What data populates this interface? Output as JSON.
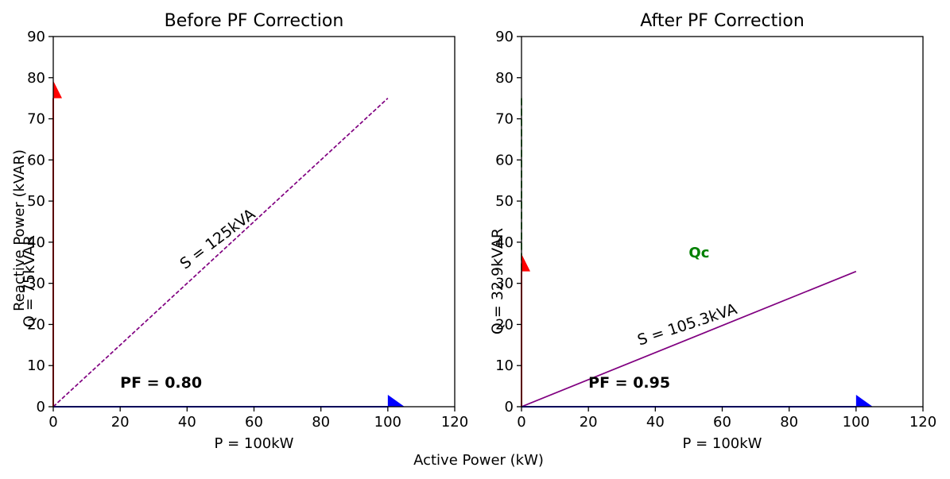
{
  "figure": {
    "supxlabel": "Active Power (kW)",
    "supylabel": "Reactive Power (kVAR)"
  },
  "colors": {
    "active": "#0000ff",
    "reactive": "#ff0000",
    "apparent": "#800080",
    "compensation": "#008000"
  },
  "chart_data": [
    {
      "type": "line",
      "title": "Before PF Correction",
      "xlabel": "P = 100kW",
      "ylabel": "Q = 75kVAR",
      "xlim": [
        0,
        120
      ],
      "ylim": [
        0,
        90
      ],
      "xticks": [
        0,
        20,
        40,
        60,
        80,
        100,
        120
      ],
      "yticks": [
        0,
        10,
        20,
        30,
        40,
        50,
        60,
        70,
        80,
        90
      ],
      "grid": false,
      "arrows": [
        {
          "name": "P",
          "from": [
            0,
            0
          ],
          "to": [
            100,
            0
          ],
          "color": "#0000ff"
        },
        {
          "name": "Q",
          "from": [
            0,
            0
          ],
          "to": [
            0,
            75
          ],
          "color": "#ff0000"
        }
      ],
      "series": [
        {
          "points": [
            [
              0,
              0
            ],
            [
              100,
              75
            ]
          ],
          "color": "#800080",
          "style": "dashed"
        }
      ],
      "annotations": [
        {
          "text": "S = 125kVA",
          "x": 50,
          "y": 37.5,
          "rotation_deg": 36.9
        },
        {
          "text": "PF = 0.80",
          "x": 20,
          "y": 5,
          "bold": true
        }
      ]
    },
    {
      "type": "line",
      "title": "After PF Correction",
      "xlabel": "P = 100kW",
      "ylabel": "Q = 32.9kVAR",
      "xlim": [
        0,
        120
      ],
      "ylim": [
        0,
        90
      ],
      "xticks": [
        0,
        20,
        40,
        60,
        80,
        100,
        120
      ],
      "yticks": [
        0,
        10,
        20,
        30,
        40,
        50,
        60,
        70,
        80,
        90
      ],
      "grid": false,
      "arrows": [
        {
          "name": "P",
          "from": [
            0,
            0
          ],
          "to": [
            100,
            0
          ],
          "color": "#0000ff"
        },
        {
          "name": "Q",
          "from": [
            0,
            0
          ],
          "to": [
            0,
            32.9
          ],
          "color": "#ff0000"
        }
      ],
      "series": [
        {
          "points": [
            [
              0,
              0
            ],
            [
              100,
              32.9
            ]
          ],
          "color": "#800080",
          "style": "solid"
        },
        {
          "points": [
            [
              0,
              75
            ],
            [
              0,
              32.9
            ]
          ],
          "color": "#008000",
          "style": "dashed"
        }
      ],
      "annotations": [
        {
          "text": "S = 105.3kVA",
          "x": 50,
          "y": 16.5,
          "rotation_deg": 18.2
        },
        {
          "text": "PF = 0.95",
          "x": 20,
          "y": 5,
          "bold": true
        },
        {
          "text": "Qc",
          "x": 50,
          "y": 37.5,
          "bold": true,
          "color": "#008000"
        }
      ]
    }
  ]
}
